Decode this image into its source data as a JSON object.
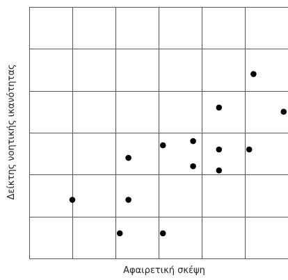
{
  "chart_data": {
    "type": "scatter",
    "title": "",
    "xlabel": "Αφαιρετική σκέψη",
    "ylabel": "Δείκτης νοητικής ικανότητας",
    "xlim": [
      0,
      6
    ],
    "ylim": [
      0,
      6
    ],
    "grid": true,
    "legend": "none",
    "point_color": "#000000",
    "grid_color": "#555555",
    "points": [
      {
        "x": 1.0,
        "y": 1.4
      },
      {
        "x": 2.1,
        "y": 0.6
      },
      {
        "x": 2.3,
        "y": 2.4
      },
      {
        "x": 2.3,
        "y": 1.4
      },
      {
        "x": 3.1,
        "y": 2.7
      },
      {
        "x": 3.1,
        "y": 0.6
      },
      {
        "x": 3.8,
        "y": 2.8
      },
      {
        "x": 3.8,
        "y": 2.2
      },
      {
        "x": 4.4,
        "y": 3.6
      },
      {
        "x": 4.4,
        "y": 2.6
      },
      {
        "x": 4.4,
        "y": 2.1
      },
      {
        "x": 5.1,
        "y": 2.6
      },
      {
        "x": 5.2,
        "y": 4.4
      },
      {
        "x": 5.9,
        "y": 3.5
      }
    ]
  }
}
